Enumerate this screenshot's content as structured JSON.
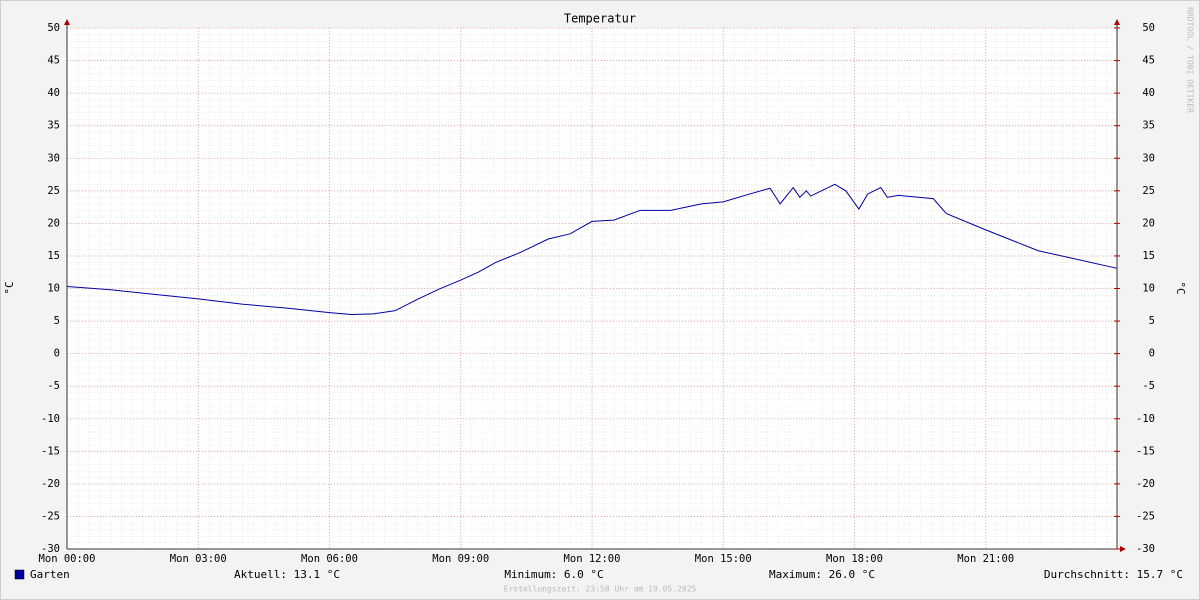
{
  "chart_data": {
    "type": "line",
    "title": "Temperatur",
    "y_label": "°C",
    "y2_label": "°C",
    "watermark": "RRDTOOL / TOBI OETIKER",
    "footnote": "Erstellungszeit: 23:58 Uhr am 19.05.2025",
    "stats": [
      "Aktuell: 13.1 °C",
      "Minimum: 6.0 °C",
      "Maximum: 26.0 °C",
      "Durchschnitt: 15.7 °C"
    ],
    "x": [
      0,
      1,
      2,
      3,
      4,
      5,
      6,
      6.5,
      7,
      7.5,
      8,
      8.5,
      9,
      9.4,
      9.8,
      10.35,
      11,
      11.5,
      12,
      12.5,
      13.1,
      13.8,
      14.5,
      15,
      15.6,
      16.07,
      16.3,
      16.6,
      16.75,
      16.9,
      17.0,
      17.55,
      17.8,
      18.1,
      18.3,
      18.6,
      18.75,
      19.0,
      19.8,
      20.1,
      21,
      22.2,
      23,
      24
    ],
    "series": [
      {
        "name": "Garten",
        "color": "#0000a0",
        "values": [
          10.3,
          9.8,
          9.1,
          8.4,
          7.6,
          7.0,
          6.3,
          6.0,
          6.1,
          6.6,
          8.3,
          9.9,
          11.3,
          12.5,
          14.0,
          15.5,
          17.6,
          18.4,
          20.3,
          20.5,
          22.0,
          22.0,
          23.0,
          23.3,
          24.5,
          25.4,
          23.0,
          25.5,
          24.0,
          25.0,
          24.2,
          26.0,
          25.0,
          22.2,
          24.5,
          25.5,
          24.0,
          24.3,
          23.8,
          21.5,
          19.0,
          15.8,
          14.6,
          13.1
        ]
      }
    ],
    "xlim": [
      0,
      24
    ],
    "xticks": [
      {
        "value": 0,
        "label": "Mon 00:00"
      },
      {
        "value": 3,
        "label": "Mon 03:00"
      },
      {
        "value": 6,
        "label": "Mon 06:00"
      },
      {
        "value": 9,
        "label": "Mon 09:00"
      },
      {
        "value": 12,
        "label": "Mon 12:00"
      },
      {
        "value": 15,
        "label": "Mon 15:00"
      },
      {
        "value": 18,
        "label": "Mon 18:00"
      },
      {
        "value": 21,
        "label": "Mon 21:00"
      }
    ],
    "ylim": [
      -30,
      50
    ],
    "yticks": [
      -30,
      -25,
      -20,
      -15,
      -10,
      -5,
      0,
      5,
      10,
      15,
      20,
      25,
      30,
      35,
      40,
      45,
      50
    ],
    "y2lim": [
      -30,
      50
    ],
    "y2ticks": [
      -30,
      -25,
      -20,
      -15,
      -10,
      -5,
      0,
      5,
      10,
      15,
      20,
      25,
      30,
      35,
      40,
      45,
      50
    ],
    "grid": true,
    "grid_color": "#e3a0a0"
  }
}
